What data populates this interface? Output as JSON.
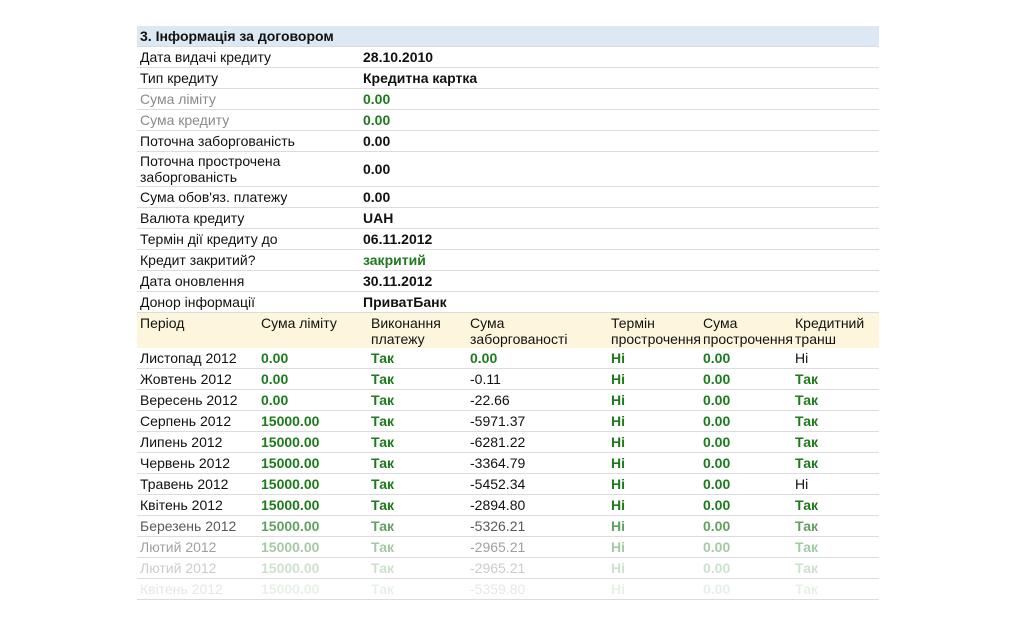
{
  "section_title": "3. Інформація за договором",
  "info": [
    {
      "label": "Дата видачі кредиту",
      "value": "28.10.2010"
    },
    {
      "label": "Тип кредиту",
      "value": "Кредитна картка"
    },
    {
      "label": "Сума ліміту",
      "value": "0.00"
    },
    {
      "label": "Сума кредиту",
      "value": "0.00"
    },
    {
      "label": "Поточна заборгованість",
      "value": "0.00"
    },
    {
      "label": "Поточна прострочена заборгованість",
      "value": "0.00"
    },
    {
      "label": "Сума обов'яз. платежу",
      "value": "0.00"
    },
    {
      "label": "Валюта кредиту",
      "value": "UAH"
    },
    {
      "label": "Термін дії кредиту до",
      "value": "06.11.2012"
    },
    {
      "label": "Кредит закритий?",
      "value": "закритий"
    },
    {
      "label": "Дата оновлення",
      "value": "30.11.2012"
    },
    {
      "label": "Донор інформації",
      "value": "ПриватБанк"
    }
  ],
  "history": {
    "columns": [
      "Період",
      "Сума ліміту",
      "Виконання платежу",
      "Сума заборгованості",
      "Термін прострочення",
      "Сума прострочення",
      "Кредитний транш"
    ],
    "rows": [
      [
        "Листопад 2012",
        "0.00",
        "Так",
        "0.00",
        "Ні",
        "0.00",
        "Ні"
      ],
      [
        "Жовтень 2012",
        "0.00",
        "Так",
        "-0.11",
        "Ні",
        "0.00",
        "Так"
      ],
      [
        "Вересень 2012",
        "0.00",
        "Так",
        "-22.66",
        "Ні",
        "0.00",
        "Так"
      ],
      [
        "Серпень 2012",
        "15000.00",
        "Так",
        "-5971.37",
        "Ні",
        "0.00",
        "Так"
      ],
      [
        "Липень 2012",
        "15000.00",
        "Так",
        "-6281.22",
        "Ні",
        "0.00",
        "Так"
      ],
      [
        "Червень 2012",
        "15000.00",
        "Так",
        "-3364.79",
        "Ні",
        "0.00",
        "Так"
      ],
      [
        "Травень 2012",
        "15000.00",
        "Так",
        "-5452.34",
        "Ні",
        "0.00",
        "Ні"
      ],
      [
        "Квітень 2012",
        "15000.00",
        "Так",
        "-2894.80",
        "Ні",
        "0.00",
        "Так"
      ],
      [
        "Березень 2012",
        "15000.00",
        "Так",
        "-5326.21",
        "Ні",
        "0.00",
        "Так"
      ],
      [
        "Лютий 2012",
        "15000.00",
        "Так",
        "-2965.21",
        "Ні",
        "0.00",
        "Так"
      ],
      [
        "Лютий 2012",
        "15000.00",
        "Так",
        "-2965.21",
        "Ні",
        "0.00",
        "Так"
      ],
      [
        "Квітень 2012",
        "15000.00",
        "Так",
        "-5359.80",
        "Ні",
        "0.00",
        "Так"
      ]
    ]
  }
}
